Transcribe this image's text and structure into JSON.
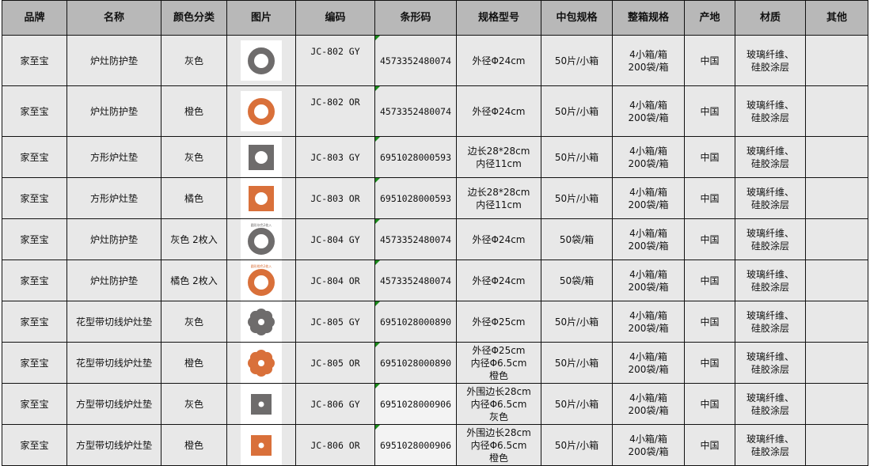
{
  "headers": [
    "品牌",
    "名称",
    "颜色分类",
    "图片",
    "编码",
    "条形码",
    "规格型号",
    "中包规格",
    "整箱规格",
    "产地",
    "材质",
    "其他"
  ],
  "colors": {
    "gray": "#6e6c6c",
    "orange": "#d9703a"
  },
  "rows": [
    {
      "brand": "家至宝",
      "name": "炉灶防护垫",
      "color": "灰色",
      "image": "ring-gray",
      "code": "JC-802 GY",
      "barcode": "4573352480074",
      "spec": [
        "外径Φ24cm"
      ],
      "pack": "50片/小箱",
      "box": [
        "4小箱/箱",
        "200袋/箱"
      ],
      "origin": "中国",
      "material": [
        "玻璃纤维、",
        "硅胶涂层"
      ],
      "other": ""
    },
    {
      "brand": "家至宝",
      "name": "炉灶防护垫",
      "color": "橙色",
      "image": "ring-orange",
      "code": "JC-802 OR",
      "barcode": "4573352480074",
      "spec": [
        "外径Φ24cm"
      ],
      "pack": "50片/小箱",
      "box": [
        "4小箱/箱",
        "200袋/箱"
      ],
      "origin": "中国",
      "material": [
        "玻璃纤维、",
        "硅胶涂层"
      ],
      "other": ""
    },
    {
      "brand": "家至宝",
      "name": "方形炉灶垫",
      "color": "灰色",
      "image": "square-gray",
      "code": "JC-803 GY",
      "barcode": "6951028000593",
      "spec": [
        "边长28*28cm",
        "内径11cm"
      ],
      "pack": "50片/小箱",
      "box": [
        "4小箱/箱",
        "200袋/箱"
      ],
      "origin": "中国",
      "material": [
        "玻璃纤维、",
        "硅胶涂层"
      ],
      "other": ""
    },
    {
      "brand": "家至宝",
      "name": "方形炉灶垫",
      "color": "橘色",
      "image": "square-orange",
      "code": "JC-803 OR",
      "barcode": "6951028000593",
      "spec": [
        "边长28*28cm",
        "内径11cm"
      ],
      "pack": "50片/小箱",
      "box": [
        "4小箱/箱",
        "200袋/箱"
      ],
      "origin": "中国",
      "material": [
        "玻璃纤维、",
        "硅胶涂层"
      ],
      "other": ""
    },
    {
      "brand": "家至宝",
      "name": "炉灶防护垫",
      "color": "灰色 2枚入",
      "image": "ring-gray",
      "caption": "圆形灰色2枚入",
      "code": "JC-804 GY",
      "barcode": "4573352480074",
      "spec": [
        "外径Φ24cm"
      ],
      "pack": "50袋/箱",
      "box": [
        "4小箱/箱",
        "200袋/箱"
      ],
      "origin": "中国",
      "material": [
        "玻璃纤维、",
        "硅胶涂层"
      ],
      "other": ""
    },
    {
      "brand": "家至宝",
      "name": "炉灶防护垫",
      "color": "橘色 2枚入",
      "image": "ring-orange",
      "caption": "圆形橙色2枚入",
      "code": "JC-804 OR",
      "barcode": "4573352480074",
      "spec": [
        "外径Φ24cm"
      ],
      "pack": "50袋/箱",
      "box": [
        "4小箱/箱",
        "200袋/箱"
      ],
      "origin": "中国",
      "material": [
        "玻璃纤维、",
        "硅胶涂层"
      ],
      "other": ""
    },
    {
      "brand": "家至宝",
      "name": "花型带切线炉灶垫",
      "color": "灰色",
      "image": "flower-gray",
      "code": "JC-805 GY",
      "barcode": "6951028000890",
      "spec": [
        "外径Φ25cm"
      ],
      "pack": "50片/小箱",
      "box": [
        "4小箱/箱",
        "200袋/箱"
      ],
      "origin": "中国",
      "material": [
        "玻璃纤维、",
        "硅胶涂层"
      ],
      "other": ""
    },
    {
      "brand": "家至宝",
      "name": "花型带切线炉灶垫",
      "color": "橙色",
      "image": "flower-orange",
      "code": "JC-805 OR",
      "barcode": "6951028000890",
      "spec": [
        "外径Φ25cm",
        "内径Φ6.5cm",
        "橙色"
      ],
      "pack": "50片/小箱",
      "box": [
        "4小箱/箱",
        "200袋/箱"
      ],
      "origin": "中国",
      "material": [
        "玻璃纤维、",
        "硅胶涂层"
      ],
      "other": ""
    },
    {
      "brand": "家至宝",
      "name": "方型带切线炉灶垫",
      "color": "灰色",
      "image": "smallsq-gray",
      "code": "JC-806 GY",
      "barcode": "6951028000906",
      "spec": [
        "外围边长28cm",
        "内径Φ6.5cm",
        "灰色"
      ],
      "pack": "50片/小箱",
      "box": [
        "4小箱/箱",
        "200袋/箱"
      ],
      "origin": "中国",
      "material": [
        "玻璃纤维、",
        "硅胶涂层"
      ],
      "other": ""
    },
    {
      "brand": "家至宝",
      "name": "方型带切线炉灶垫",
      "color": "橙色",
      "image": "smallsq-orange",
      "code": "JC-806 OR",
      "barcode": "6951028000906",
      "spec": [
        "外围边长28cm",
        "内径Φ6.5cm",
        "橙色"
      ],
      "pack": "50片/小箱",
      "box": [
        "4小箱/箱",
        "200袋/箱"
      ],
      "origin": "中国",
      "material": [
        "玻璃纤维、",
        "硅胶涂层"
      ],
      "other": ""
    }
  ]
}
